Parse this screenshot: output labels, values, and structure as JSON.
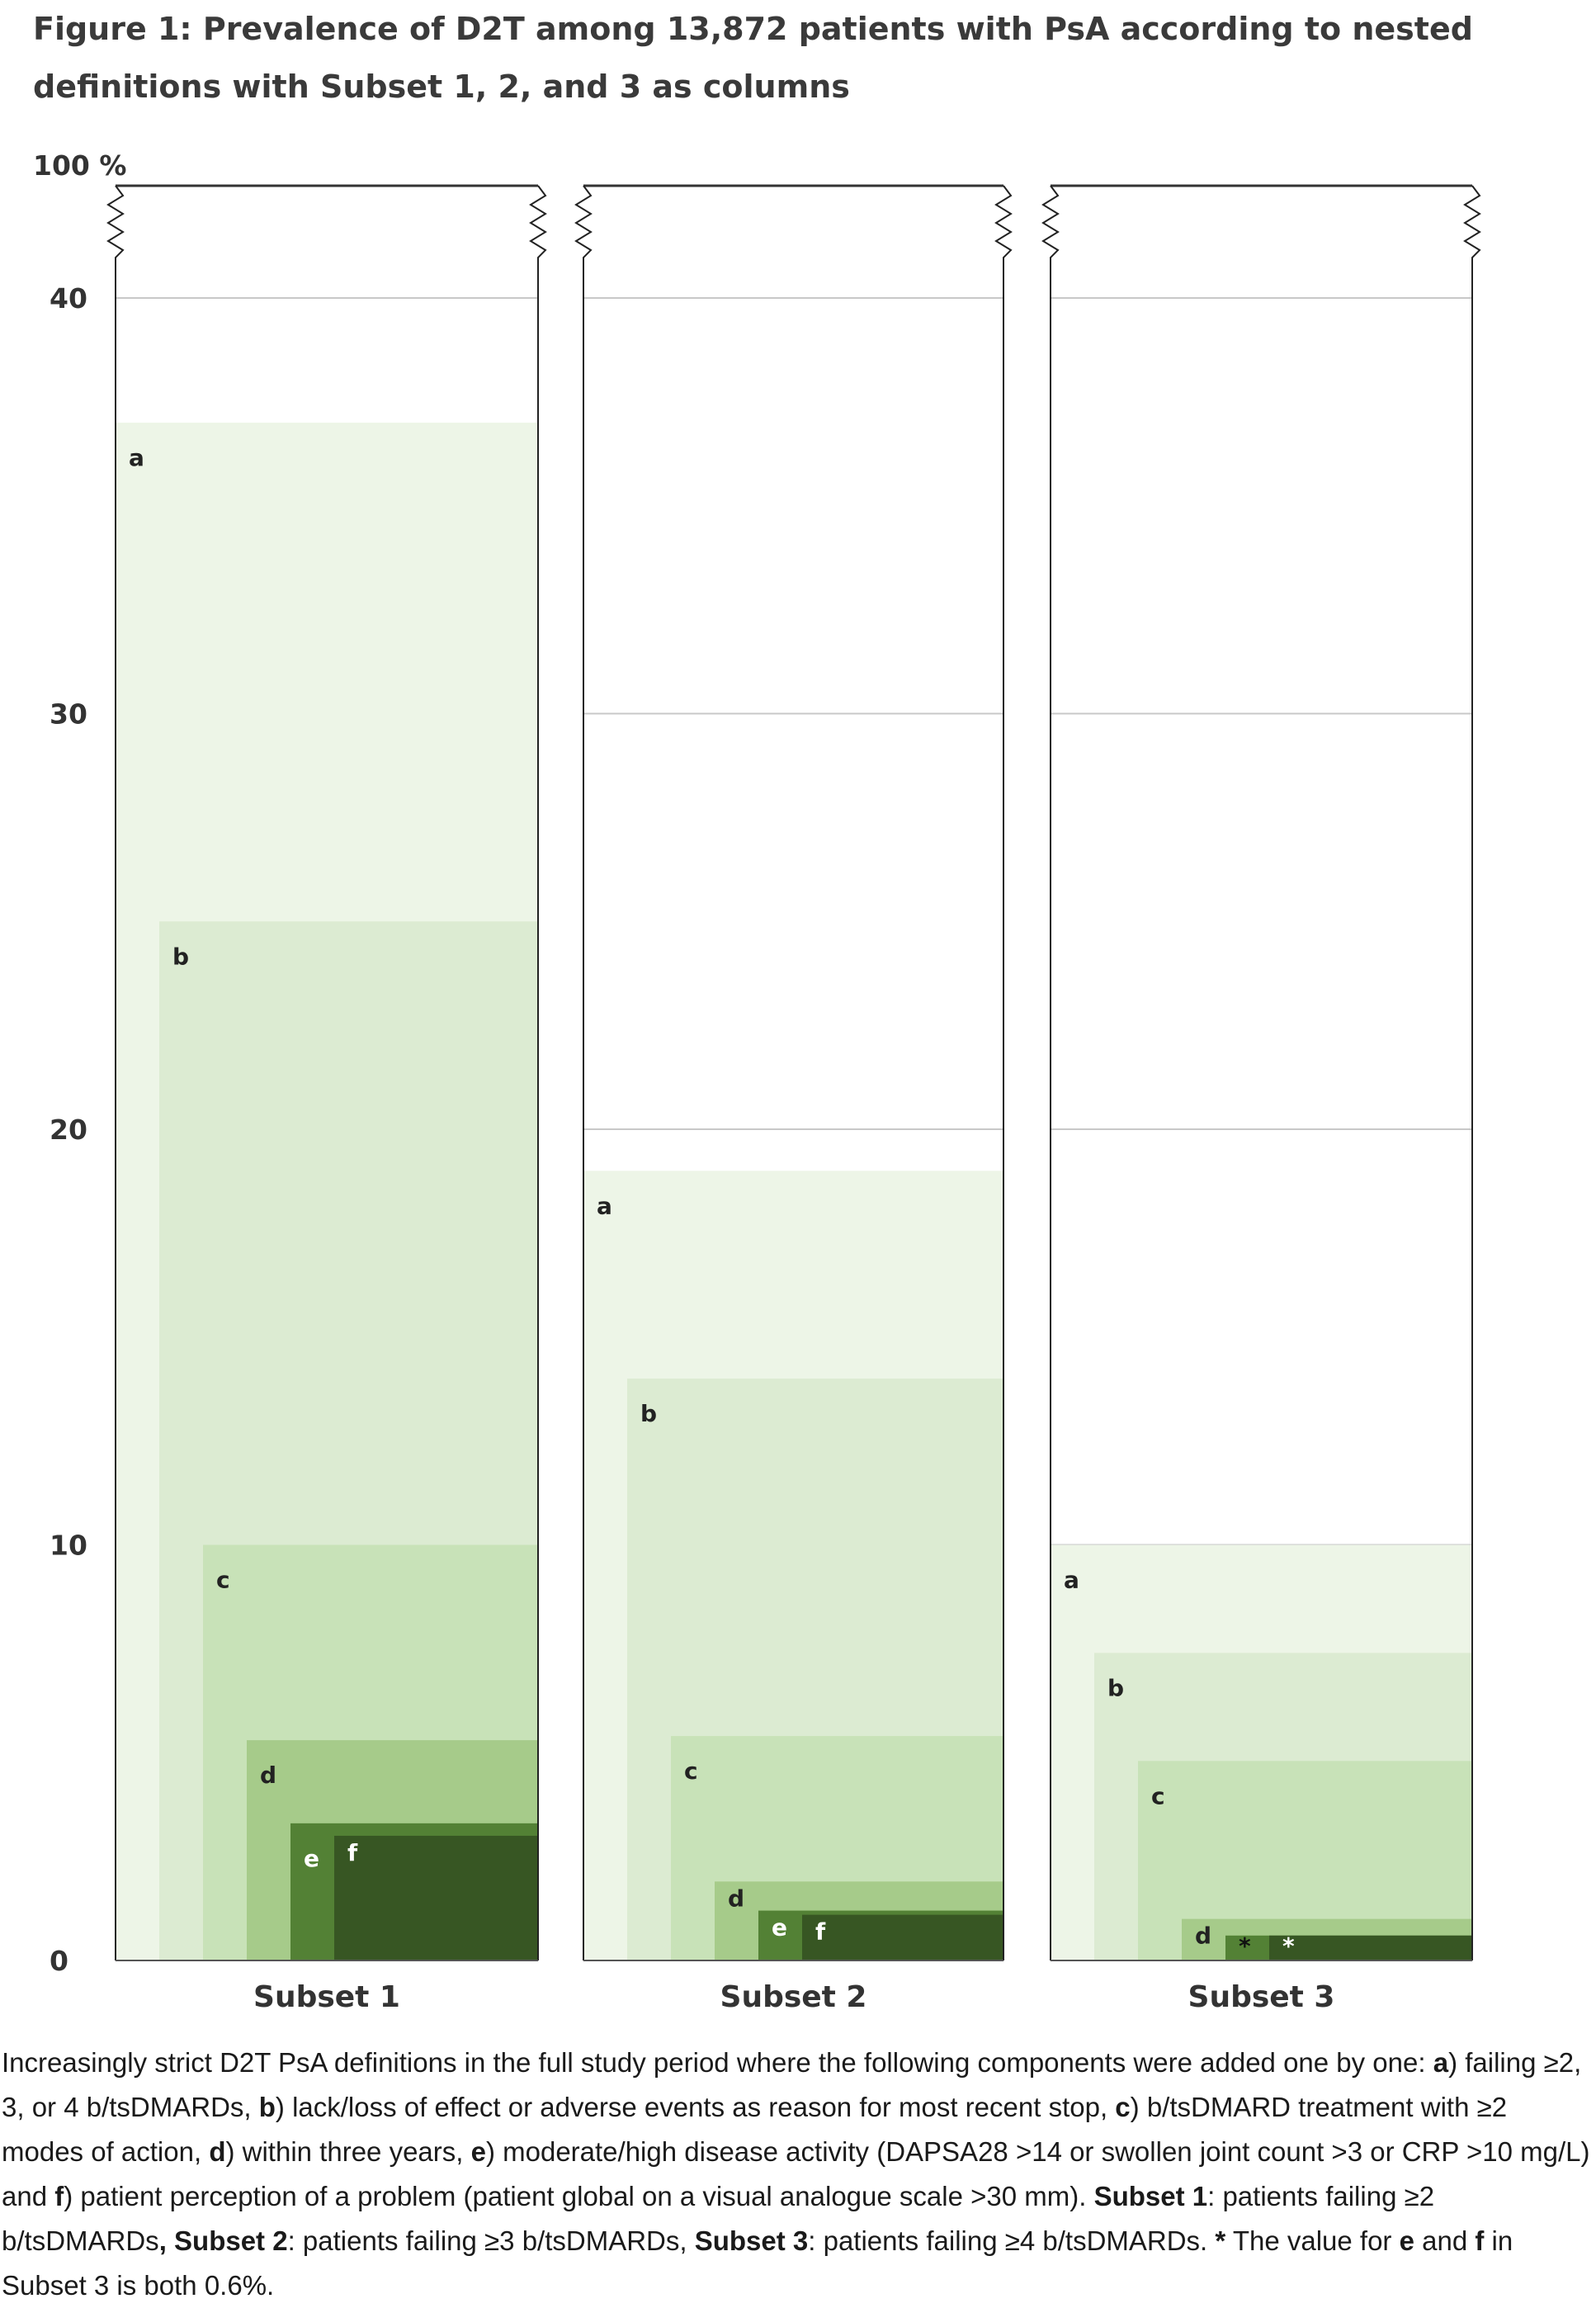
{
  "figure_title": "Figure 1: Prevalence of D2T among 13,872 patients with PsA according to nested definitions with Subset 1, 2, and 3 as columns",
  "chart_data": {
    "type": "bar",
    "title": "Figure 1: Prevalence of D2T among 13,872 patients with PsA according to nested definitions with Subset 1, 2, and 3 as columns",
    "y_axis": {
      "ticks": [
        0,
        10,
        20,
        30,
        40
      ],
      "top_label": "100 %",
      "range": [
        0,
        40
      ],
      "broken_axis": "40 to 100 %",
      "grid": true
    },
    "categories": [
      "Subset 1",
      "Subset 2",
      "Subset 3"
    ],
    "series": [
      {
        "name": "a",
        "color": "#edf5e7",
        "values": [
          37,
          19,
          10
        ]
      },
      {
        "name": "b",
        "color": "#dcebd2",
        "values": [
          25,
          14,
          7.4
        ]
      },
      {
        "name": "c",
        "color": "#c8e2b8",
        "values": [
          10,
          5.4,
          4.8
        ]
      },
      {
        "name": "d",
        "color": "#a6cb8a",
        "values": [
          5.3,
          1.9,
          1.0
        ]
      },
      {
        "name": "e",
        "color": "#538135",
        "values": [
          3.3,
          1.2,
          0.6
        ]
      },
      {
        "name": "f",
        "color": "#375623",
        "values": [
          3.0,
          1.1,
          0.6
        ]
      }
    ],
    "bar_labels_subset3_ef": "*"
  },
  "caption": {
    "intro": "Increasingly strict D2T PsA definitions in the full study period where the following components were added one by one: ",
    "items": [
      {
        "key": "a",
        "text": ") failing ≥2, 3, or 4 b/tsDMARDs, "
      },
      {
        "key": "b",
        "text": ") lack/loss of effect or adverse events as reason for most recent stop, "
      },
      {
        "key": "c",
        "text": ") b/tsDMARD treatment with ≥2 modes of action, "
      },
      {
        "key": "d",
        "text": ") within three years, "
      },
      {
        "key": "e",
        "text": ") moderate/high disease activity (DAPSA28 >14 or swollen joint count >3 or CRP >10 mg/L) and "
      },
      {
        "key": "f",
        "text": ") patient perception of a problem (patient global on a visual analogue scale >30 mm). "
      }
    ],
    "subset1_key": "Subset 1",
    "subset1_text": ": patients failing ≥2 b/tsDMARDs",
    "subset2_key": ", Subset 2",
    "subset2_text": ": patients failing ≥3 b/tsDMARDs, ",
    "subset3_key": "Subset 3",
    "subset3_text": ": patients failing ≥4 b/tsDMARDs. ",
    "note_key": "*",
    "note_text": " The value for ",
    "note_e": "e",
    "note_and": " and ",
    "note_f": "f",
    "note_end": " in Subset 3 is both 0.6%."
  }
}
